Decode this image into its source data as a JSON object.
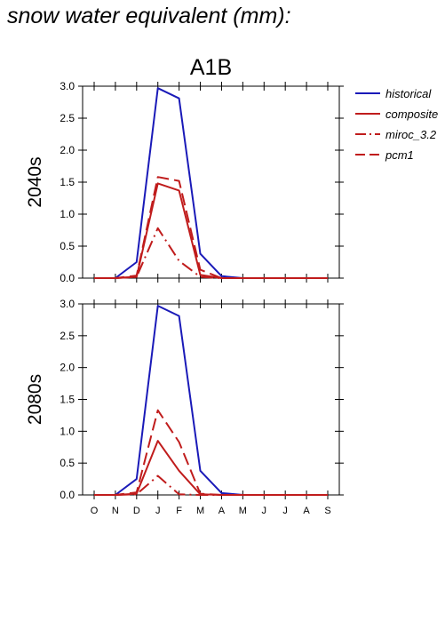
{
  "figure_title": "snow water equivalent (mm):",
  "colors": {
    "historical": "#1a1ab8",
    "projection": "#c01c1c",
    "axis": "#000000"
  },
  "chart_data": [
    {
      "type": "line",
      "title": "A1B",
      "ylabel": "2040s",
      "xlabel": "",
      "categories": [
        "O",
        "N",
        "D",
        "J",
        "F",
        "M",
        "A",
        "M",
        "J",
        "J",
        "A",
        "S"
      ],
      "ylim": [
        0,
        3.0
      ],
      "yticks": [
        "0.0",
        "0.5",
        "1.0",
        "1.5",
        "2.0",
        "2.5",
        "3.0"
      ],
      "show_x_tick_labels": false,
      "grid": false,
      "legend_position": "right",
      "series": [
        {
          "name": "historical",
          "style": "solid",
          "color": "#1a1ab8",
          "values": [
            0,
            0,
            0.25,
            2.97,
            2.81,
            0.38,
            0.03,
            0,
            0,
            0,
            0,
            0
          ]
        },
        {
          "name": "composite",
          "style": "solid",
          "color": "#c01c1c",
          "values": [
            0,
            0,
            0.02,
            1.48,
            1.37,
            0.05,
            0,
            0,
            0,
            0,
            0,
            0
          ]
        },
        {
          "name": "miroc_3.2",
          "style": "dashdot",
          "color": "#c01c1c",
          "values": [
            0,
            0,
            0.02,
            0.78,
            0.27,
            0.02,
            0,
            0,
            0,
            0,
            0,
            0
          ]
        },
        {
          "name": "pcm1",
          "style": "dashed",
          "color": "#c01c1c",
          "values": [
            0,
            0,
            0.04,
            1.58,
            1.52,
            0.13,
            0,
            0,
            0,
            0,
            0,
            0
          ]
        }
      ]
    },
    {
      "type": "line",
      "title": "",
      "ylabel": "2080s",
      "xlabel": "",
      "categories": [
        "O",
        "N",
        "D",
        "J",
        "F",
        "M",
        "A",
        "M",
        "J",
        "J",
        "A",
        "S"
      ],
      "ylim": [
        0,
        3.0
      ],
      "yticks": [
        "0.0",
        "0.5",
        "1.0",
        "1.5",
        "2.0",
        "2.5",
        "3.0"
      ],
      "show_x_tick_labels": true,
      "grid": false,
      "series": [
        {
          "name": "historical",
          "style": "solid",
          "color": "#1a1ab8",
          "values": [
            0,
            0,
            0.25,
            2.97,
            2.81,
            0.38,
            0.03,
            0,
            0,
            0,
            0,
            0
          ]
        },
        {
          "name": "composite",
          "style": "solid",
          "color": "#c01c1c",
          "values": [
            0,
            0,
            0.02,
            0.85,
            0.38,
            0.01,
            0,
            0,
            0,
            0,
            0,
            0
          ]
        },
        {
          "name": "miroc_3.2",
          "style": "dashdot",
          "color": "#c01c1c",
          "values": [
            0,
            0,
            0.01,
            0.3,
            0.01,
            0,
            0,
            0,
            0,
            0,
            0,
            0
          ]
        },
        {
          "name": "pcm1",
          "style": "dashed",
          "color": "#c01c1c",
          "values": [
            0,
            0,
            0.04,
            1.33,
            0.83,
            0.02,
            0,
            0,
            0,
            0,
            0,
            0
          ]
        }
      ]
    }
  ],
  "legend": [
    {
      "name": "historical",
      "style": "solid",
      "color": "#1a1ab8"
    },
    {
      "name": "composite",
      "style": "solid",
      "color": "#c01c1c"
    },
    {
      "name": "miroc_3.2",
      "style": "dashdot",
      "color": "#c01c1c"
    },
    {
      "name": "pcm1",
      "style": "dashed",
      "color": "#c01c1c"
    }
  ]
}
